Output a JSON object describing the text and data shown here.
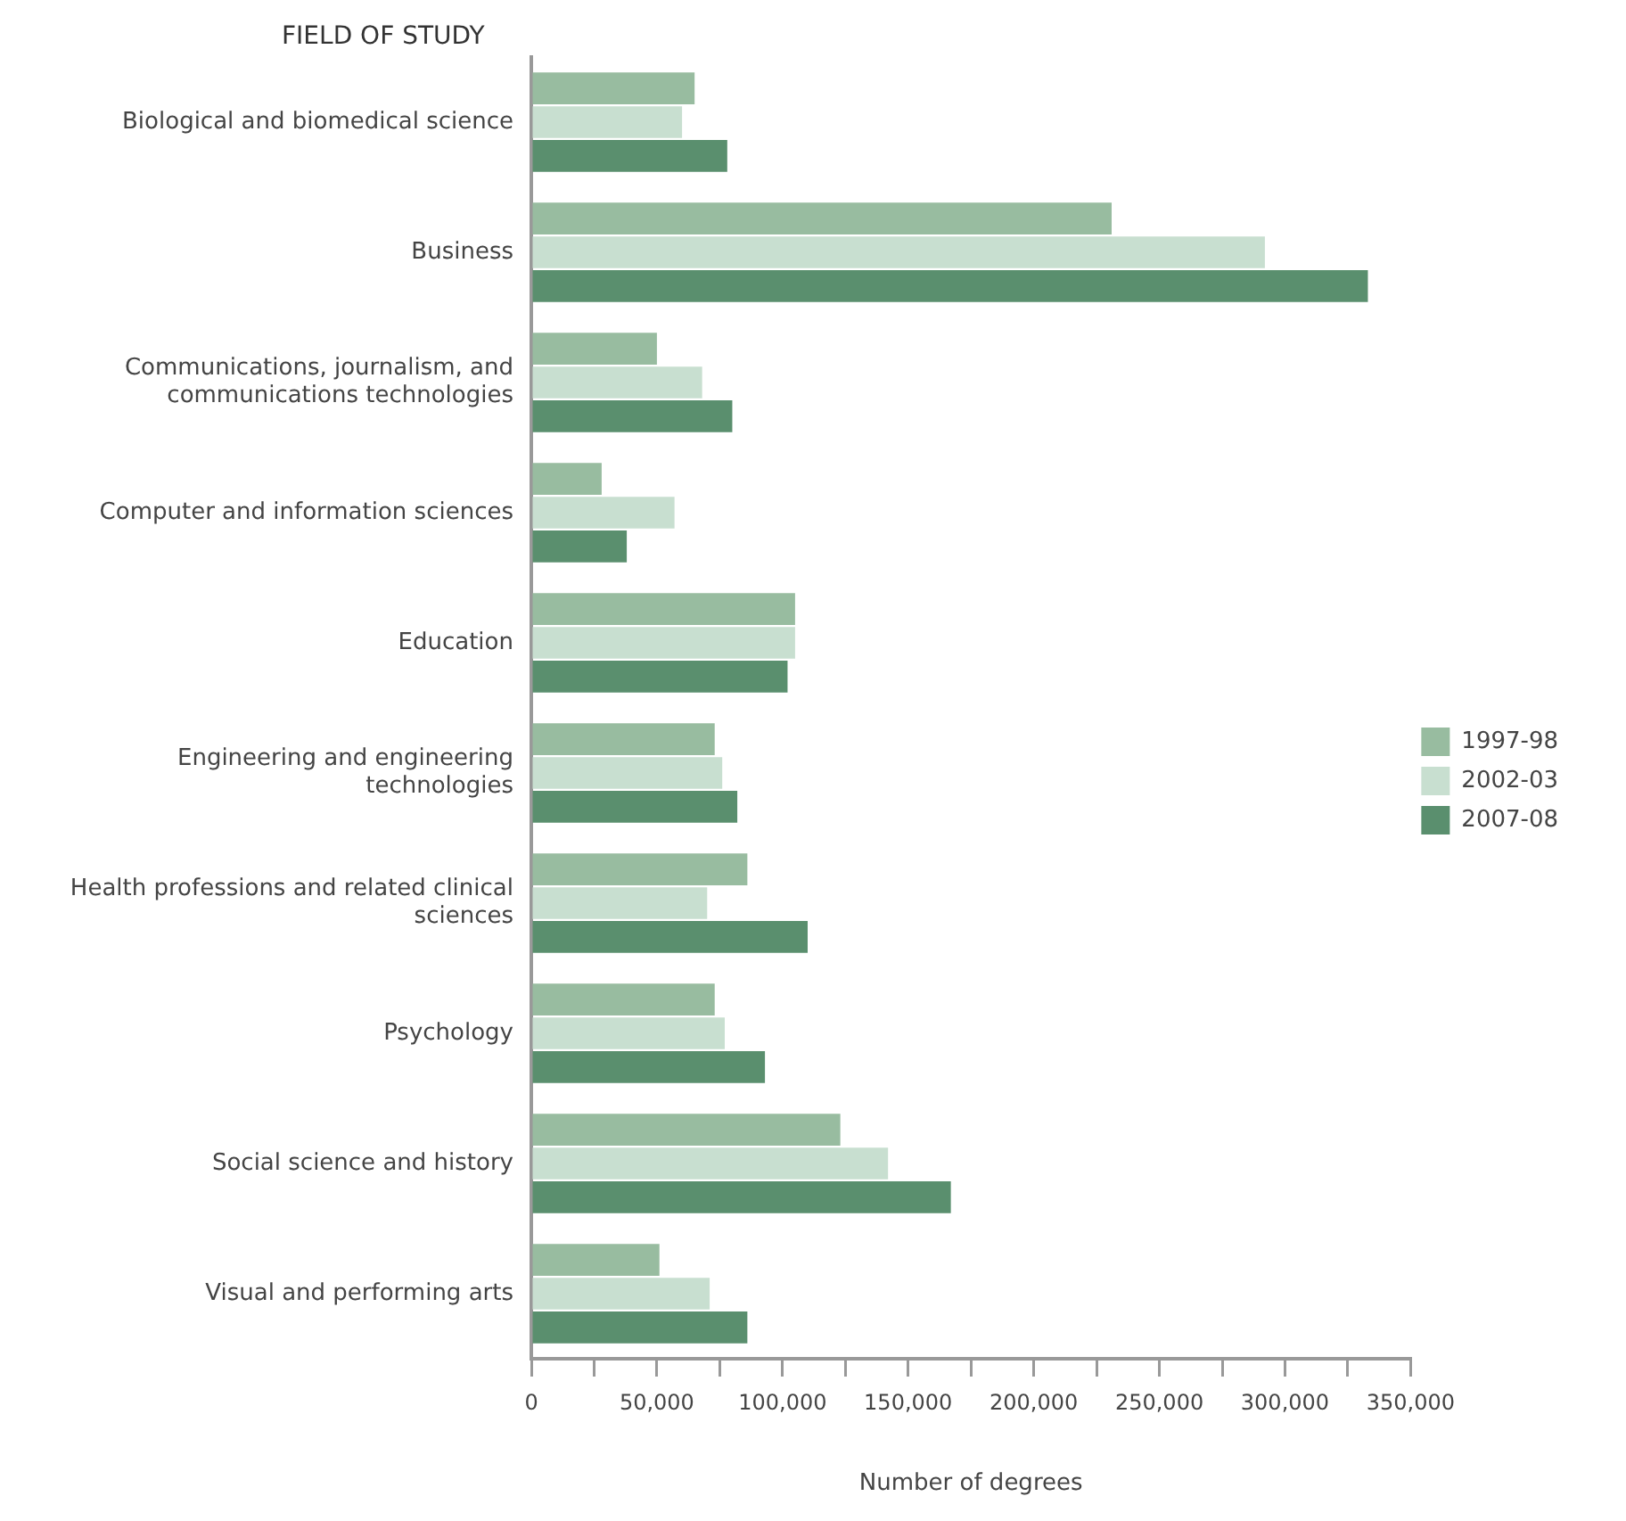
{
  "chart_data": {
    "type": "bar",
    "orientation": "horizontal",
    "ylabel": "FIELD OF STUDY",
    "xlabel": "Number of degrees",
    "categories": [
      "Biological and biomedical science",
      "Business",
      "Communications, journalism, and communications technologies",
      "Computer and information sciences",
      "Education",
      "Engineering and engineering technologies",
      "Health professions and related clinical sciences",
      "Psychology",
      "Social science and history",
      "Visual and performing arts"
    ],
    "series": [
      {
        "name": "1997-98",
        "color": "#98bca0",
        "values": [
          65000,
          231000,
          50000,
          28000,
          105000,
          73000,
          86000,
          73000,
          123000,
          51000
        ]
      },
      {
        "name": "2002-03",
        "color": "#c8dfd0",
        "values": [
          60000,
          292000,
          68000,
          57000,
          105000,
          76000,
          70000,
          77000,
          142000,
          71000
        ]
      },
      {
        "name": "2007-08",
        "color": "#5a8f6e",
        "values": [
          78000,
          333000,
          80000,
          38000,
          102000,
          82000,
          110000,
          93000,
          167000,
          86000
        ]
      }
    ],
    "xlim": [
      0,
      350000
    ],
    "xticks": [
      0,
      {
        "value": 25000,
        "label": null
      },
      {
        "value": 50000,
        "label": "50,000"
      },
      {
        "value": 75000,
        "label": null
      },
      {
        "value": 100000,
        "label": "100,000"
      },
      {
        "value": 125000,
        "label": null
      },
      {
        "value": 150000,
        "label": "150,000"
      },
      {
        "value": 175000,
        "label": null
      },
      {
        "value": 200000,
        "label": "200,000"
      },
      {
        "value": 225000,
        "label": null
      },
      {
        "value": 250000,
        "label": "250,000"
      },
      {
        "value": 275000,
        "label": null
      },
      {
        "value": 300000,
        "label": "300,000"
      },
      {
        "value": 325000,
        "label": null
      },
      {
        "value": 350000,
        "label": "350,000"
      }
    ],
    "grid": false,
    "legend": "right"
  }
}
